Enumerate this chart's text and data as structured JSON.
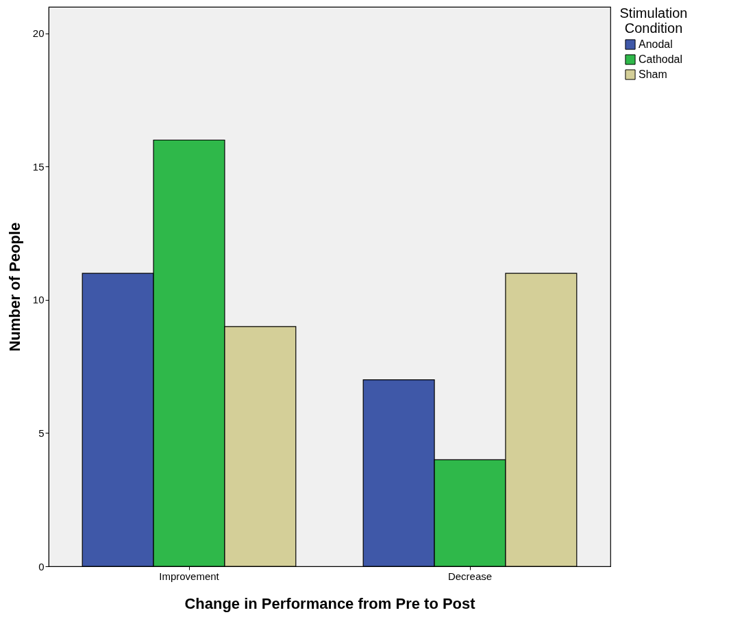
{
  "chart_data": {
    "type": "bar",
    "xlabel": "Change in Performance from Pre to Post",
    "ylabel": "Number of People",
    "legend_title": "Stimulation Condition",
    "categories": [
      "Improvement",
      "Decrease"
    ],
    "series": [
      {
        "name": "Anodal",
        "color": "#3f58a8",
        "values": [
          11,
          7
        ]
      },
      {
        "name": "Cathodal",
        "color": "#2fb84a",
        "values": [
          16,
          4
        ]
      },
      {
        "name": "Sham",
        "color": "#d4cf98",
        "values": [
          9,
          11
        ]
      }
    ],
    "ylim": [
      0,
      21
    ],
    "yticks": [
      0,
      5,
      10,
      15,
      20
    ],
    "grid": false,
    "legend": "top right"
  }
}
